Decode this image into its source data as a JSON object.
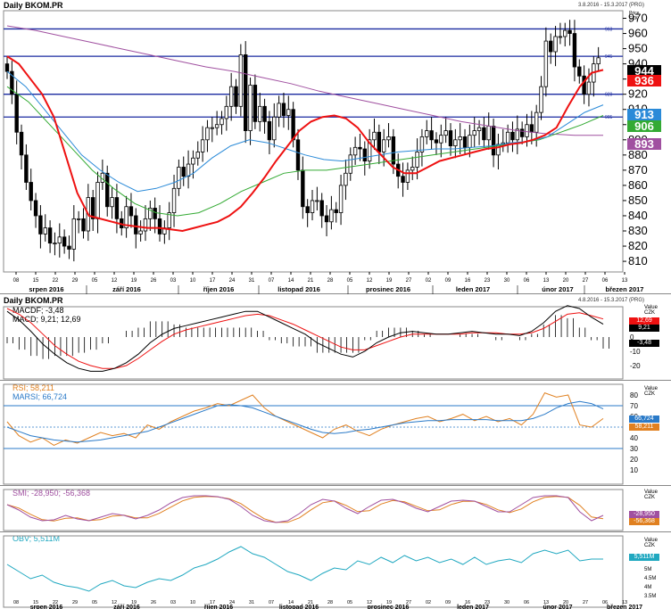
{
  "price_panel": {
    "title": "Daily BKOM.PR",
    "date_range": "3.8.2016 - 15.3.2017 (PRG)",
    "axis_unit_line1": "Price",
    "axis_unit_line2": "CZK",
    "tags": {
      "last": "944",
      "ma_red": "936",
      "ma_blue": "913",
      "ma_green": "906",
      "ma_purple": "893"
    },
    "hline_labels": [
      "963",
      "945",
      "920",
      "905"
    ],
    "colors": {
      "candle": "#000000",
      "red": "#e11",
      "blue": "#2a8ad8",
      "green": "#3a3",
      "purple": "#a050a0",
      "hline": "#1a2aa0"
    }
  },
  "macd_panel": {
    "title": "Daily BKOM.PR",
    "date_range": "4.8.2016 - 15.3.2017 (PRG)",
    "legend_macdf": "MACDF; -3,48",
    "legend_macd": "MACD; 9,21; 12,69",
    "tags": {
      "red": "12,69",
      "black": "9,21",
      "hist": "-3,48"
    },
    "axis_unit": "Value",
    "axis_unit2": "CZK",
    "yticks": [
      "10",
      "0",
      "-10",
      "-20"
    ]
  },
  "rsi_panel": {
    "legend_rsi": "RSI; 58,211",
    "legend_marsi": "MARSI; 66,724",
    "tags": {
      "marsi": "66,724",
      "rsi": "58,211"
    },
    "axis_unit": "Value",
    "axis_unit2": "CZK",
    "yticks": [
      "80",
      "70",
      "60",
      "50",
      "40",
      "30",
      "20",
      "10"
    ]
  },
  "smi_panel": {
    "legend": "SMI; -28,950; -56,368",
    "tags": {
      "a": "-28,950",
      "b": "-56,368"
    },
    "axis_unit": "Value",
    "axis_unit2": "CZK"
  },
  "obv_panel": {
    "legend": "OBV; 5,511M",
    "tag": "5,511M",
    "axis_unit": "Value",
    "axis_unit2": "CZK",
    "yticks": [
      "5M",
      "4.5M",
      "4M",
      "3.5M"
    ]
  },
  "chart_data": {
    "type": "line",
    "title": "Daily BKOM.PR",
    "x_ticks": [
      "08",
      "15",
      "22",
      "29",
      "05",
      "12",
      "19",
      "26",
      "03",
      "10",
      "17",
      "24",
      "31",
      "07",
      "14",
      "21",
      "28",
      "05",
      "12",
      "19",
      "27",
      "02",
      "09",
      "16",
      "23",
      "30",
      "06",
      "13",
      "20",
      "27",
      "06",
      "13"
    ],
    "month_labels": [
      "srpen 2016",
      "září 2016",
      "říjen 2016",
      "listopad 2016",
      "prosinec 2016",
      "leden 2017",
      "únor 2017",
      "březen 2017"
    ],
    "y_ticks": [
      970,
      960,
      950,
      940,
      930,
      920,
      910,
      900,
      890,
      880,
      870,
      860,
      850,
      840,
      830,
      820,
      810
    ],
    "ylim": [
      803,
      975
    ],
    "close": [
      935,
      920,
      895,
      880,
      862,
      850,
      840,
      828,
      832,
      822,
      822,
      826,
      820,
      818,
      838,
      838,
      830,
      852,
      838,
      862,
      868,
      846,
      852,
      838,
      832,
      846,
      840,
      828,
      830,
      838,
      845,
      838,
      828,
      832,
      842,
      858,
      872,
      866,
      874,
      878,
      882,
      890,
      898,
      898,
      900,
      904,
      912,
      925,
      912,
      946,
      896,
      926,
      902,
      912,
      902,
      890,
      905,
      914,
      906,
      910,
      890,
      870,
      846,
      842,
      850,
      850,
      840,
      836,
      844,
      842,
      860,
      868,
      880,
      885,
      884,
      876,
      890,
      895,
      882,
      890,
      892,
      874,
      866,
      862,
      870,
      872,
      882,
      892,
      896,
      890,
      888,
      893,
      896,
      886,
      890,
      892,
      885,
      893,
      896,
      898,
      890,
      899,
      880,
      887,
      888,
      895,
      890,
      897,
      892,
      900,
      895,
      908,
      925,
      955,
      948,
      958,
      958,
      962,
      960,
      938,
      932,
      920,
      928,
      940,
      944
    ],
    "series_ma_red": [
      945,
      940,
      930,
      920,
      905,
      880,
      855,
      840,
      838,
      836,
      834,
      833,
      832,
      832,
      831,
      830,
      832,
      834,
      836,
      840,
      846,
      855,
      865,
      876,
      886,
      896,
      902,
      905,
      906,
      904,
      898,
      888,
      880,
      872,
      868,
      868,
      872,
      876,
      878,
      880,
      882,
      884,
      885,
      887,
      888,
      890,
      893,
      898,
      912,
      925,
      934,
      936
    ],
    "series_ma_blue": [
      935,
      925,
      910,
      895,
      880,
      870,
      862,
      856,
      858,
      862,
      868,
      878,
      886,
      890,
      888,
      884,
      880,
      877,
      876,
      878,
      880,
      882,
      883,
      884,
      884,
      885,
      886,
      888,
      889,
      892,
      900,
      908,
      913
    ],
    "series_ma_green": [
      925,
      915,
      900,
      885,
      870,
      858,
      848,
      842,
      840,
      842,
      848,
      856,
      862,
      868,
      870,
      870,
      872,
      874,
      876,
      878,
      880,
      882,
      884,
      886,
      888,
      890,
      895,
      900,
      906
    ],
    "series_ma_purple": [
      965,
      962,
      958,
      954,
      950,
      946,
      942,
      938,
      935,
      931,
      927,
      922,
      918,
      914,
      910,
      906,
      902,
      899,
      896,
      894,
      893,
      893
    ],
    "hlines": [
      963,
      945,
      920,
      905
    ]
  }
}
